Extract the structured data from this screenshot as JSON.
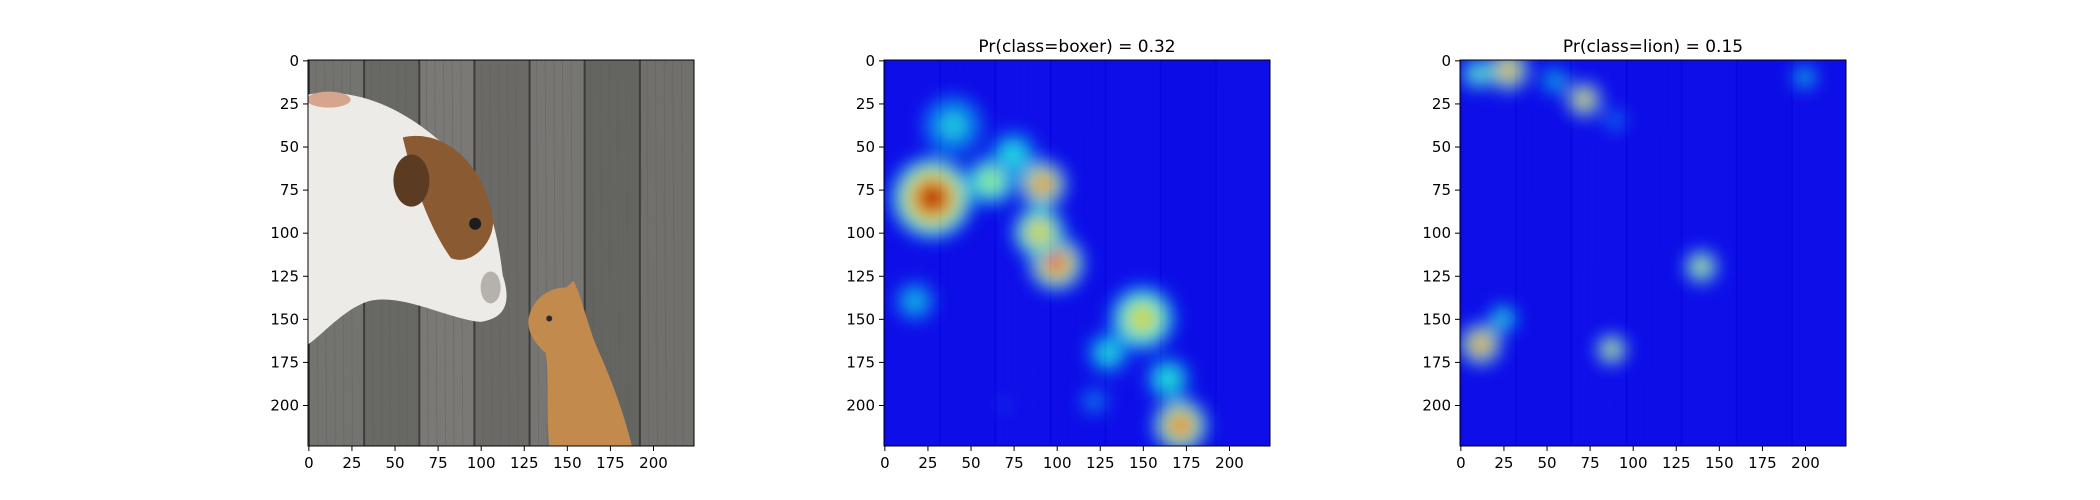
{
  "chart_data": [
    {
      "type": "heatmap",
      "title": "",
      "content": "input photo",
      "x_ticks": [
        0,
        25,
        50,
        75,
        100,
        125,
        150,
        175,
        200
      ],
      "y_ticks": [
        0,
        25,
        50,
        75,
        100,
        125,
        150,
        175,
        200
      ],
      "xlim": [
        0,
        224
      ],
      "ylim": [
        224,
        0
      ]
    },
    {
      "type": "heatmap",
      "title": "Pr(class=boxer) =  0.32",
      "colormap": "jet",
      "x_ticks": [
        0,
        25,
        50,
        75,
        100,
        125,
        150,
        175,
        200
      ],
      "y_ticks": [
        0,
        25,
        50,
        75,
        100,
        125,
        150,
        175,
        200
      ],
      "xlim": [
        0,
        224
      ],
      "ylim": [
        224,
        0
      ],
      "hotspots": [
        {
          "x": 28,
          "y": 80,
          "r": 24,
          "intensity": 1.0
        },
        {
          "x": 92,
          "y": 72,
          "r": 14,
          "intensity": 0.9
        },
        {
          "x": 100,
          "y": 118,
          "r": 16,
          "intensity": 0.95
        },
        {
          "x": 62,
          "y": 70,
          "r": 16,
          "intensity": 0.6
        },
        {
          "x": 90,
          "y": 100,
          "r": 16,
          "intensity": 0.75
        },
        {
          "x": 150,
          "y": 150,
          "r": 20,
          "intensity": 0.7
        },
        {
          "x": 172,
          "y": 212,
          "r": 16,
          "intensity": 0.9
        },
        {
          "x": 40,
          "y": 38,
          "r": 22,
          "intensity": 0.4
        },
        {
          "x": 75,
          "y": 55,
          "r": 16,
          "intensity": 0.45
        },
        {
          "x": 18,
          "y": 140,
          "r": 14,
          "intensity": 0.4
        },
        {
          "x": 130,
          "y": 170,
          "r": 14,
          "intensity": 0.45
        },
        {
          "x": 165,
          "y": 185,
          "r": 14,
          "intensity": 0.5
        },
        {
          "x": 122,
          "y": 198,
          "r": 10,
          "intensity": 0.35
        },
        {
          "x": 70,
          "y": 200,
          "r": 9,
          "intensity": 0.25
        }
      ]
    },
    {
      "type": "heatmap",
      "title": "Pr(class=lion) =  0.15",
      "colormap": "jet",
      "x_ticks": [
        0,
        25,
        50,
        75,
        100,
        125,
        150,
        175,
        200
      ],
      "y_ticks": [
        0,
        25,
        50,
        75,
        100,
        125,
        150,
        175,
        200
      ],
      "xlim": [
        0,
        224
      ],
      "ylim": [
        224,
        0
      ],
      "hotspots": [
        {
          "x": 28,
          "y": 6,
          "r": 12,
          "intensity": 0.85
        },
        {
          "x": 10,
          "y": 8,
          "r": 10,
          "intensity": 0.55
        },
        {
          "x": 72,
          "y": 23,
          "r": 10,
          "intensity": 0.85
        },
        {
          "x": 55,
          "y": 12,
          "r": 10,
          "intensity": 0.4
        },
        {
          "x": 90,
          "y": 35,
          "r": 8,
          "intensity": 0.35
        },
        {
          "x": 200,
          "y": 10,
          "r": 8,
          "intensity": 0.45
        },
        {
          "x": 140,
          "y": 120,
          "r": 10,
          "intensity": 0.7
        },
        {
          "x": 12,
          "y": 165,
          "r": 12,
          "intensity": 0.9
        },
        {
          "x": 25,
          "y": 150,
          "r": 9,
          "intensity": 0.5
        },
        {
          "x": 88,
          "y": 168,
          "r": 9,
          "intensity": 0.75
        }
      ]
    }
  ]
}
